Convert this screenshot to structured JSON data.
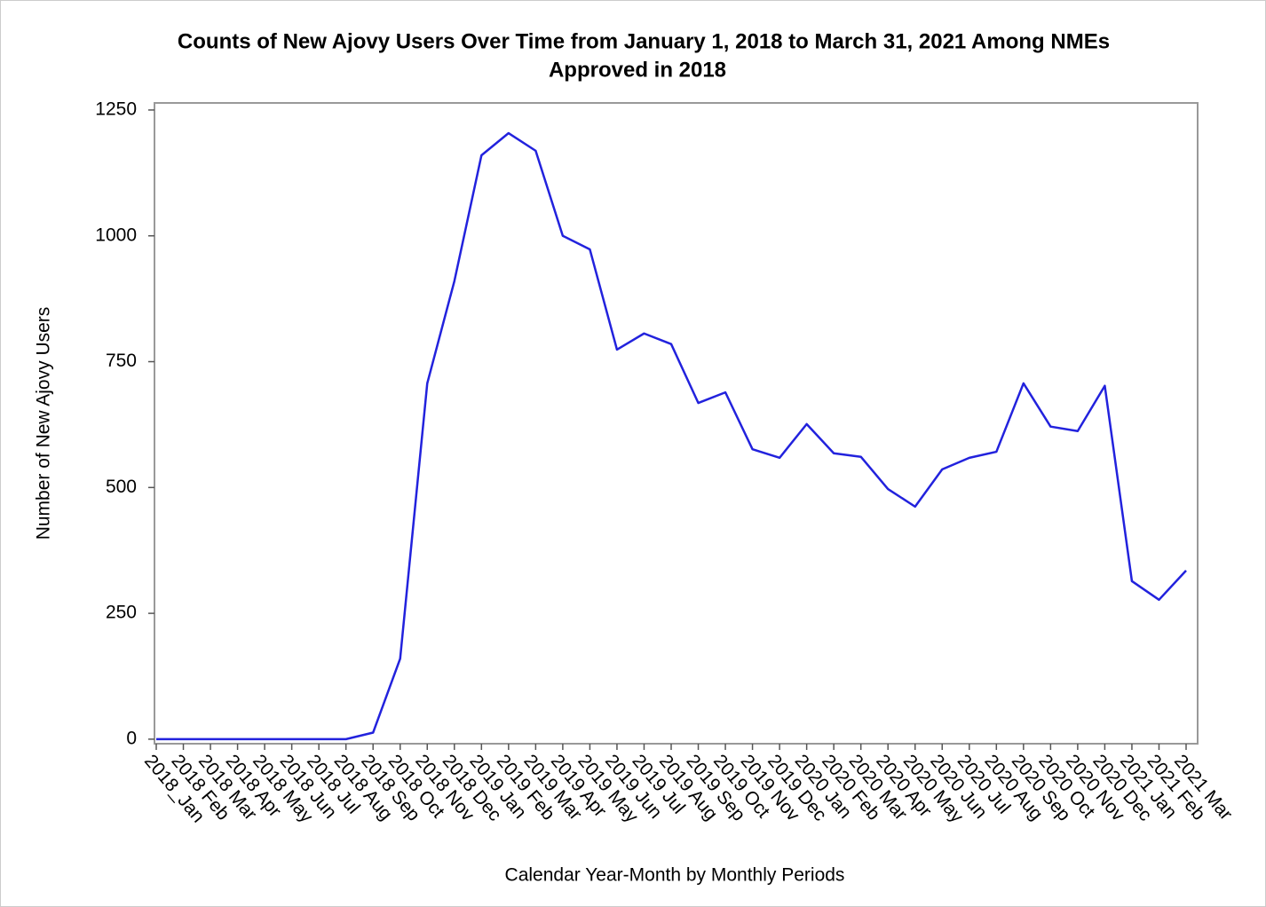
{
  "chart_data": {
    "type": "line",
    "title": "Counts of New Ajovy Users Over Time from January 1, 2018 to March 31, 2021 Among NMEs",
    "title_line2": "Approved in 2018",
    "x_label": "Calendar Year-Month by Monthly Periods",
    "y_label": "Number of New Ajovy Users",
    "categories": [
      "2018_Jan",
      "2018 Feb",
      "2018 Mar",
      "2018 Apr",
      "2018 May",
      "2018 Jun",
      "2018 Jul",
      "2018 Aug",
      "2018 Sep",
      "2018 Oct",
      "2018 Nov",
      "2018 Dec",
      "2019 Jan",
      "2019 Feb",
      "2019 Mar",
      "2019 Apr",
      "2019 May",
      "2019 Jun",
      "2019 Jul",
      "2019 Aug",
      "2019 Sep",
      "2019 Oct",
      "2019 Nov",
      "2019 Dec",
      "2020 Jan",
      "2020 Feb",
      "2020 Mar",
      "2020 Apr",
      "2020 May",
      "2020 Jun",
      "2020 Jul",
      "2020 Aug",
      "2020 Sep",
      "2020 Oct",
      "2020 Nov",
      "2020 Dec",
      "2021 Jan",
      "2021 Feb",
      "2021 Mar"
    ],
    "series": [
      {
        "name": "New Ajovy Users",
        "color": "#2222dd",
        "values": [
          0,
          0,
          0,
          0,
          0,
          0,
          0,
          0,
          13,
          160,
          707,
          910,
          1160,
          1204,
          1169,
          1000,
          973,
          774,
          806,
          785,
          668,
          689,
          576,
          559,
          626,
          568,
          561,
          497,
          462,
          536,
          559,
          571,
          707,
          621,
          612,
          702,
          314,
          277,
          335
        ]
      }
    ],
    "ylim": [
      -9,
      1264
    ],
    "yticks": [
      0,
      250,
      500,
      750,
      1000,
      1250
    ]
  }
}
